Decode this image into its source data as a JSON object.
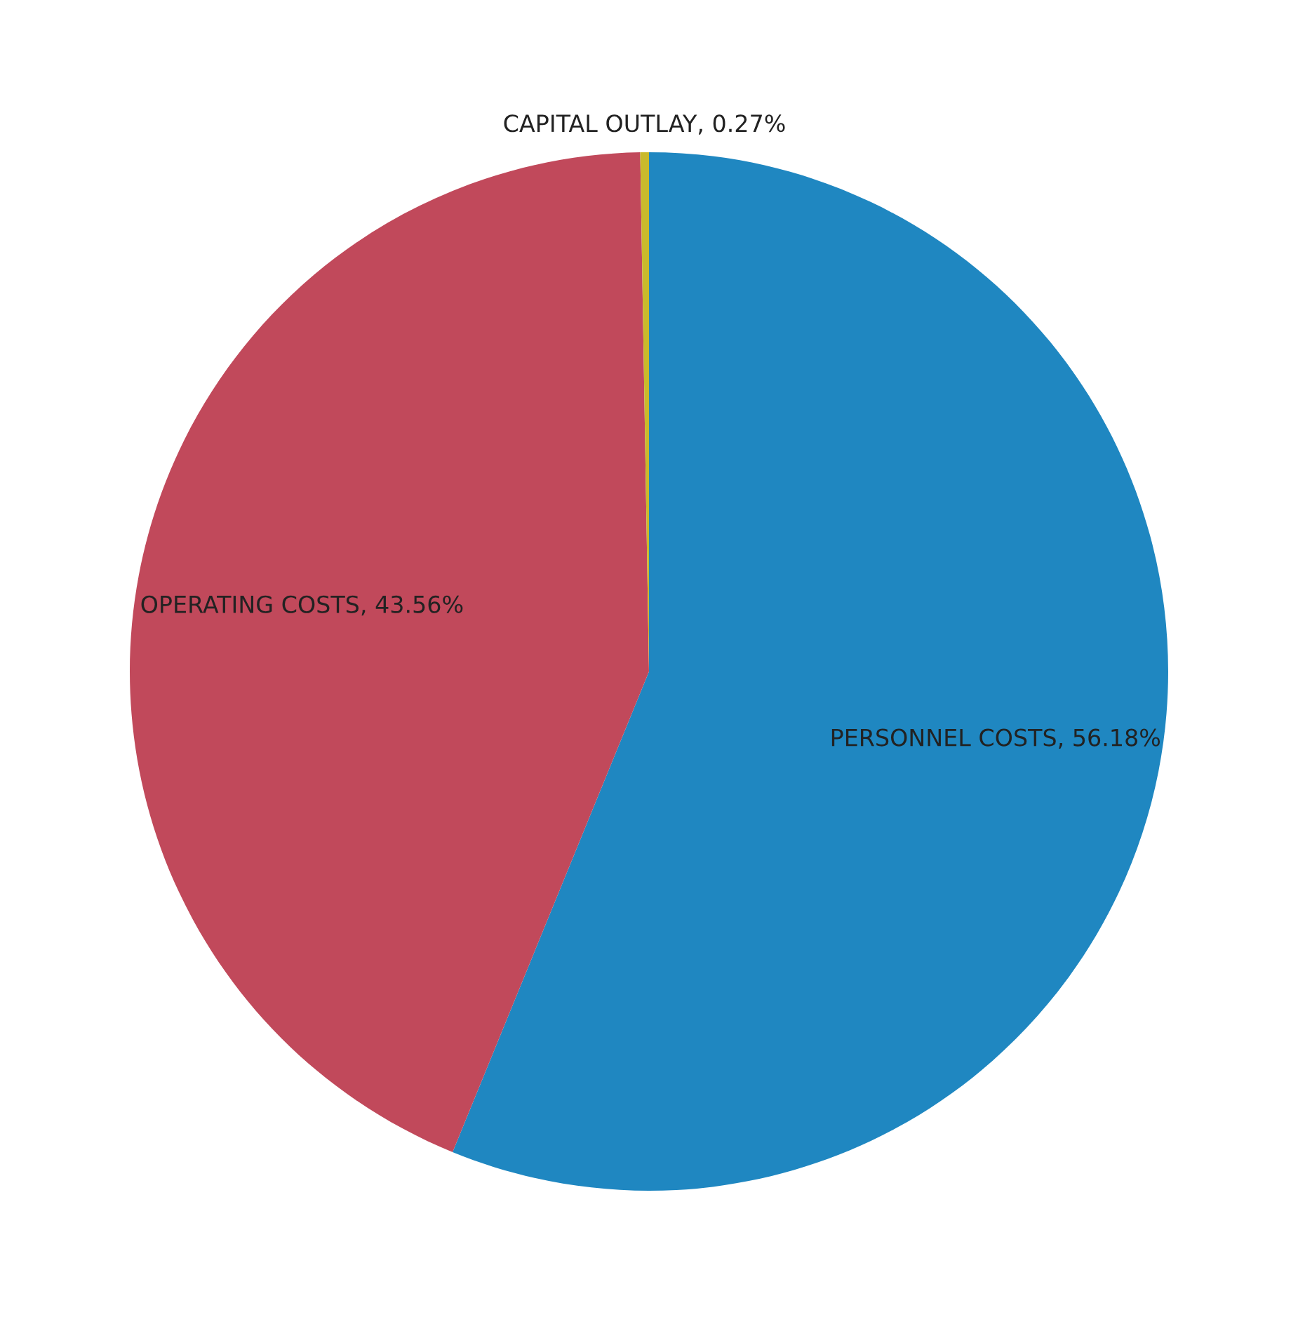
{
  "chart_data": {
    "type": "pie",
    "categories": [
      "PERSONNEL COSTS",
      "OPERATING COSTS",
      "CAPITAL OUTLAY"
    ],
    "values": [
      56.18,
      43.56,
      0.27
    ],
    "colors": [
      "#1f87c1",
      "#c1495b",
      "#c9ba2c"
    ],
    "value_labels": [
      "56.18%",
      "43.56%",
      "0.27%"
    ]
  }
}
